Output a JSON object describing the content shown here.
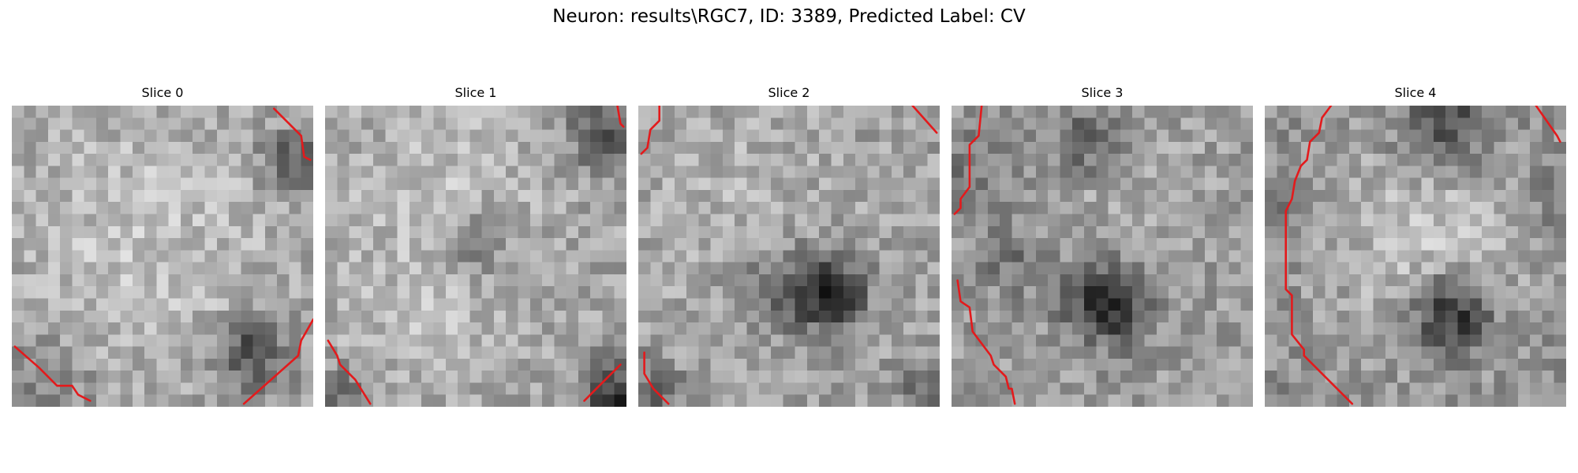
{
  "figure": {
    "title": "Neuron: results\\RGC7, ID: 3389, Predicted Label: CV"
  },
  "contour_color": "#e31a1c",
  "slices": [
    {
      "title": "Slice 0",
      "shading": {
        "base": 160,
        "bright_spots": [
          [
            0.45,
            0.45,
            0.45,
            35
          ]
        ],
        "dark_spots": [
          [
            0.8,
            0.82,
            0.12,
            90
          ],
          [
            0.93,
            0.18,
            0.1,
            70
          ],
          [
            0.1,
            0.9,
            0.15,
            35
          ]
        ]
      },
      "contours": [
        [
          [
            0.87,
            0.01
          ],
          [
            0.96,
            0.1
          ],
          [
            0.97,
            0.17
          ],
          [
            0.99,
            0.18
          ]
        ],
        [
          [
            0.01,
            0.8
          ],
          [
            0.09,
            0.87
          ],
          [
            0.15,
            0.93
          ],
          [
            0.2,
            0.93
          ],
          [
            0.22,
            0.96
          ],
          [
            0.26,
            0.98
          ]
        ],
        [
          [
            1.0,
            0.71
          ],
          [
            0.96,
            0.78
          ],
          [
            0.95,
            0.83
          ],
          [
            0.77,
            0.99
          ]
        ]
      ]
    },
    {
      "title": "Slice 1",
      "shading": {
        "base": 165,
        "bright_spots": [
          [
            0.4,
            0.25,
            0.3,
            25
          ],
          [
            0.3,
            0.7,
            0.3,
            20
          ]
        ],
        "dark_spots": [
          [
            0.5,
            0.45,
            0.12,
            55
          ],
          [
            0.97,
            0.97,
            0.12,
            120
          ],
          [
            0.92,
            0.1,
            0.12,
            70
          ],
          [
            0.05,
            0.95,
            0.1,
            50
          ]
        ]
      },
      "contours": [
        [
          [
            0.97,
            0.0
          ],
          [
            0.98,
            0.06
          ],
          [
            0.99,
            0.07
          ]
        ],
        [
          [
            0.01,
            0.78
          ],
          [
            0.04,
            0.83
          ],
          [
            0.05,
            0.86
          ],
          [
            0.1,
            0.91
          ],
          [
            0.15,
            0.99
          ]
        ],
        [
          [
            0.98,
            0.86
          ],
          [
            0.86,
            0.98
          ]
        ]
      ]
    },
    {
      "title": "Slice 2",
      "shading": {
        "base": 160,
        "bright_spots": [
          [
            0.3,
            0.3,
            0.35,
            20
          ]
        ],
        "dark_spots": [
          [
            0.63,
            0.62,
            0.12,
            130
          ],
          [
            0.45,
            0.6,
            0.15,
            40
          ],
          [
            0.97,
            0.95,
            0.1,
            60
          ],
          [
            0.05,
            0.95,
            0.1,
            50
          ]
        ]
      },
      "contours": [
        [
          [
            0.07,
            0.0
          ],
          [
            0.07,
            0.05
          ],
          [
            0.04,
            0.08
          ],
          [
            0.03,
            0.14
          ],
          [
            0.01,
            0.16
          ]
        ],
        [
          [
            0.91,
            0.0
          ],
          [
            0.99,
            0.09
          ]
        ],
        [
          [
            0.02,
            0.82
          ],
          [
            0.02,
            0.89
          ],
          [
            0.05,
            0.94
          ],
          [
            0.07,
            0.96
          ],
          [
            0.1,
            0.99
          ]
        ]
      ]
    },
    {
      "title": "Slice 3",
      "shading": {
        "base": 155,
        "bright_spots": [
          [
            0.6,
            0.3,
            0.25,
            20
          ]
        ],
        "dark_spots": [
          [
            0.52,
            0.65,
            0.13,
            130
          ],
          [
            0.45,
            0.12,
            0.12,
            60
          ],
          [
            0.05,
            0.2,
            0.12,
            40
          ],
          [
            0.2,
            0.5,
            0.12,
            40
          ]
        ]
      },
      "contours": [
        [
          [
            0.1,
            0.0
          ],
          [
            0.09,
            0.1
          ],
          [
            0.06,
            0.13
          ],
          [
            0.06,
            0.27
          ],
          [
            0.03,
            0.31
          ],
          [
            0.03,
            0.34
          ],
          [
            0.01,
            0.36
          ]
        ],
        [
          [
            0.02,
            0.58
          ],
          [
            0.03,
            0.65
          ],
          [
            0.06,
            0.67
          ],
          [
            0.07,
            0.75
          ],
          [
            0.13,
            0.83
          ],
          [
            0.14,
            0.86
          ],
          [
            0.18,
            0.9
          ],
          [
            0.19,
            0.94
          ],
          [
            0.2,
            0.94
          ],
          [
            0.21,
            0.99
          ]
        ]
      ]
    },
    {
      "title": "Slice 4",
      "shading": {
        "base": 140,
        "bright_spots": [
          [
            0.55,
            0.45,
            0.4,
            55
          ]
        ],
        "dark_spots": [
          [
            0.6,
            0.07,
            0.15,
            80
          ],
          [
            0.62,
            0.69,
            0.13,
            120
          ],
          [
            0.05,
            0.35,
            0.1,
            40
          ],
          [
            0.95,
            0.3,
            0.1,
            40
          ]
        ]
      },
      "contours": [
        [
          [
            0.22,
            0.0
          ],
          [
            0.19,
            0.04
          ],
          [
            0.18,
            0.09
          ],
          [
            0.15,
            0.12
          ],
          [
            0.14,
            0.18
          ],
          [
            0.12,
            0.2
          ],
          [
            0.1,
            0.25
          ],
          [
            0.09,
            0.31
          ],
          [
            0.07,
            0.35
          ],
          [
            0.07,
            0.61
          ],
          [
            0.09,
            0.63
          ],
          [
            0.09,
            0.76
          ],
          [
            0.13,
            0.81
          ],
          [
            0.13,
            0.83
          ],
          [
            0.29,
            0.99
          ]
        ],
        [
          [
            0.9,
            0.0
          ],
          [
            0.97,
            0.1
          ],
          [
            0.98,
            0.12
          ]
        ]
      ]
    }
  ]
}
